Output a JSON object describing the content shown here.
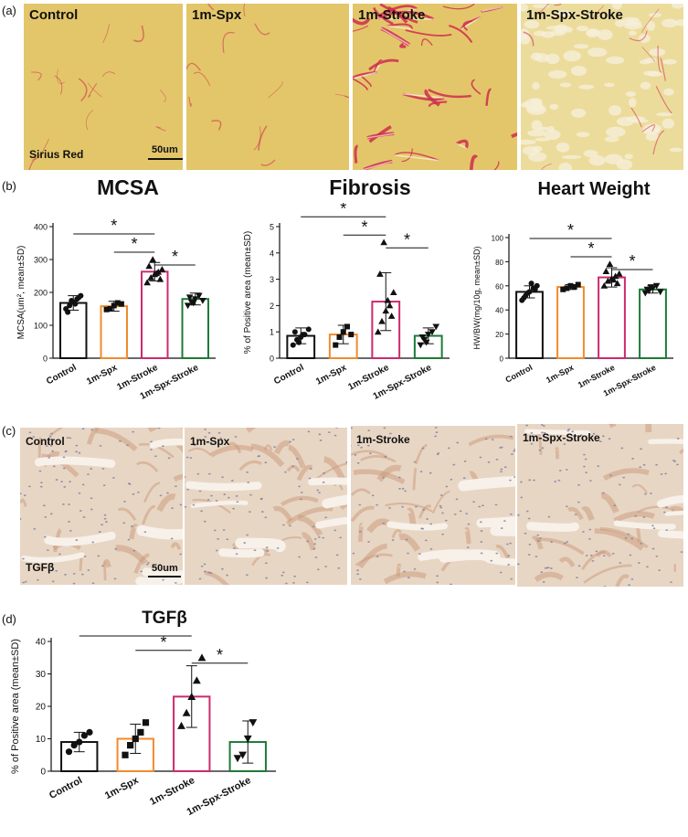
{
  "panel_labels": {
    "a": "(a)",
    "b": "(b)",
    "c": "(c)",
    "d": "(d)"
  },
  "row_a": {
    "captions": [
      "Control",
      "1m-Spx",
      "1m-Stroke",
      "1m-Spx-Stroke"
    ],
    "stain_label": "Sirius Red",
    "scale_label": "50um",
    "colors": {
      "bg": "#e3c66a",
      "fiber": "#cf2c4e"
    }
  },
  "row_c": {
    "captions": [
      "Control",
      "1m-Spx",
      "1m-Stroke",
      "1m-Spx-Stroke"
    ],
    "stain_label": "TGFβ",
    "scale_label": "50um",
    "colors": {
      "bg": "#e8d6c4",
      "streak": "#c99779",
      "nuclei": "#7a7fa3"
    }
  },
  "chart_data": [
    {
      "type": "bar",
      "title": "MCSA",
      "ylabel": "MCSA(um², mean±SD)",
      "categories": [
        "Control",
        "1m-Spx",
        "1m-Stroke",
        "1m-Spx-Stroke"
      ],
      "values": [
        168,
        158,
        263,
        180
      ],
      "errors": [
        22,
        15,
        28,
        18
      ],
      "ylim": [
        0,
        400
      ],
      "yticks": [
        "0",
        "100",
        "200",
        "300",
        "400"
      ],
      "points": [
        [
          150,
          160,
          170,
          180,
          190,
          140,
          175,
          165,
          185
        ],
        [
          148,
          150,
          160,
          168,
          165
        ],
        [
          230,
          245,
          255,
          262,
          270,
          280,
          300,
          258,
          240
        ],
        [
          160,
          170,
          180,
          190,
          175,
          185,
          168
        ]
      ],
      "colors": [
        "#111111",
        "#f28a2e",
        "#cc2a6e",
        "#1e7a3a"
      ],
      "markers": [
        "circle",
        "square",
        "triangle",
        "triangle-down"
      ],
      "significance": [
        "*",
        "*",
        "*"
      ]
    },
    {
      "type": "bar",
      "title": "Fibrosis",
      "ylabel": "% of Positive area (mean±SD)",
      "categories": [
        "Control",
        "1m-Spx",
        "1m-Stroke",
        "1m-Spx-Stroke"
      ],
      "values": [
        0.85,
        0.9,
        2.15,
        0.85
      ],
      "errors": [
        0.3,
        0.35,
        1.1,
        0.3
      ],
      "ylim": [
        0,
        5
      ],
      "yticks": [
        "0",
        "1",
        "2",
        "3",
        "4",
        "5"
      ],
      "points": [
        [
          0.5,
          0.7,
          0.8,
          0.9,
          1.1,
          1.0,
          0.6,
          0.9
        ],
        [
          0.5,
          0.8,
          1.0,
          1.2,
          0.9
        ],
        [
          1.0,
          1.4,
          1.8,
          2.0,
          2.5,
          3.2,
          4.4,
          2.2,
          1.6
        ],
        [
          0.5,
          0.7,
          0.9,
          1.0,
          1.2,
          0.8,
          0.6
        ]
      ],
      "colors": [
        "#111111",
        "#f28a2e",
        "#cc2a6e",
        "#1e7a3a"
      ],
      "markers": [
        "circle",
        "square",
        "triangle",
        "triangle-down"
      ],
      "significance": [
        "*",
        "*",
        "*"
      ]
    },
    {
      "type": "bar",
      "title": "Heart Weight",
      "ylabel": "HW/BW(mg/10g, mean±SD)",
      "categories": [
        "Control",
        "1m-Spx",
        "1m-Stroke",
        "1m-Spx-Stroke"
      ],
      "values": [
        55,
        59,
        67,
        57
      ],
      "errors": [
        5,
        2,
        8,
        3
      ],
      "ylim": [
        0,
        100
      ],
      "yticks": [
        "0",
        "20",
        "40",
        "60",
        "80",
        "100"
      ],
      "points": [
        [
          48,
          52,
          55,
          58,
          60,
          50,
          54,
          62,
          57
        ],
        [
          57,
          58,
          60,
          59,
          61
        ],
        [
          60,
          64,
          66,
          68,
          70,
          72,
          78,
          65,
          62
        ],
        [
          54,
          56,
          58,
          60,
          55,
          57,
          59
        ]
      ],
      "colors": [
        "#111111",
        "#f28a2e",
        "#cc2a6e",
        "#1e7a3a"
      ],
      "markers": [
        "circle",
        "square",
        "triangle",
        "triangle-down"
      ],
      "significance": [
        "*",
        "*",
        "*"
      ]
    },
    {
      "type": "bar",
      "title": "TGFβ",
      "ylabel": "% of Positive area (mean±SD)",
      "categories": [
        "Control",
        "1m-Spx",
        "1m-Stroke",
        "1m-Spx-Stroke"
      ],
      "values": [
        9,
        10,
        23,
        9
      ],
      "errors": [
        3,
        4.5,
        9.5,
        6.5
      ],
      "ylim": [
        0,
        40
      ],
      "yticks": [
        "0",
        "10",
        "20",
        "30",
        "40"
      ],
      "points": [
        [
          6,
          8,
          9,
          11,
          12
        ],
        [
          5,
          8,
          10,
          12,
          15
        ],
        [
          14,
          18,
          23,
          28,
          35
        ],
        [
          4,
          5,
          10,
          15
        ]
      ],
      "colors": [
        "#111111",
        "#f28a2e",
        "#cc2a6e",
        "#1e7a3a"
      ],
      "markers": [
        "circle",
        "square",
        "triangle",
        "triangle-down"
      ],
      "significance": [
        "*",
        "*",
        "*"
      ]
    }
  ]
}
